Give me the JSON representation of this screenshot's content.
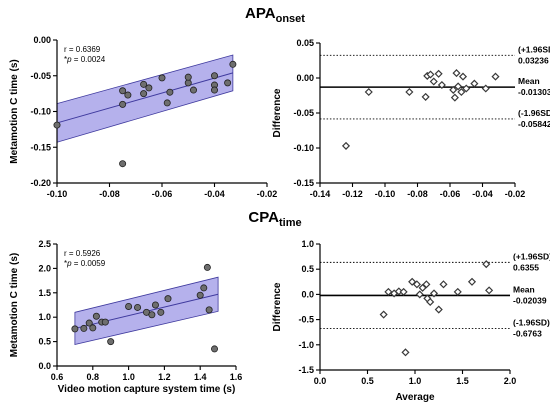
{
  "rows": [
    {
      "title": "APA",
      "title_sub": "onset"
    },
    {
      "title": "CPA",
      "title_sub": "time"
    }
  ],
  "colors": {
    "band": "#9c97e6",
    "band_line": "#3f3a9e",
    "marker": "#3a3a3a",
    "axis": "#000000"
  },
  "chart_data": [
    {
      "type": "scatter",
      "ylabel": "Metamotion C time (s)",
      "xlim": [
        -0.1,
        -0.02
      ],
      "ylim": [
        -0.2,
        0.0
      ],
      "xticks": [
        -0.1,
        -0.08,
        -0.06,
        -0.04,
        -0.02
      ],
      "yticks": [
        -0.2,
        -0.15,
        -0.1,
        -0.05,
        0.0
      ],
      "xtick_labels": [
        "-0.10",
        "-0.08",
        "-0.06",
        "-0.04",
        "-0.02"
      ],
      "ytick_labels": [
        "-0.20",
        "-0.15",
        "-0.10",
        "-0.05",
        "0.00"
      ],
      "annotation": [
        "r = 0.6369",
        "p = 0.0024"
      ],
      "p_prefix": "*",
      "regression": {
        "x": [
          -0.1,
          -0.033
        ],
        "y": [
          -0.116,
          -0.046
        ]
      },
      "ci_band": {
        "x": [
          -0.1,
          -0.033
        ],
        "upper": [
          -0.089,
          -0.021
        ],
        "lower": [
          -0.143,
          -0.071
        ]
      },
      "points": [
        [
          -0.1,
          -0.119
        ],
        [
          -0.075,
          -0.173
        ],
        [
          -0.075,
          -0.071
        ],
        [
          -0.075,
          -0.09
        ],
        [
          -0.073,
          -0.077
        ],
        [
          -0.067,
          -0.075
        ],
        [
          -0.067,
          -0.062
        ],
        [
          -0.065,
          -0.067
        ],
        [
          -0.06,
          -0.053
        ],
        [
          -0.058,
          -0.088
        ],
        [
          -0.057,
          -0.073
        ],
        [
          -0.05,
          -0.06
        ],
        [
          -0.05,
          -0.052
        ],
        [
          -0.048,
          -0.07
        ],
        [
          -0.04,
          -0.05
        ],
        [
          -0.04,
          -0.063
        ],
        [
          -0.04,
          -0.07
        ],
        [
          -0.035,
          -0.06
        ],
        [
          -0.033,
          -0.034
        ]
      ]
    },
    {
      "type": "scatter",
      "ylabel": "Difference",
      "xlim": [
        -0.14,
        -0.02
      ],
      "ylim": [
        -0.15,
        0.05
      ],
      "xticks": [
        -0.14,
        -0.12,
        -0.1,
        -0.08,
        -0.06,
        -0.04,
        -0.02
      ],
      "yticks": [
        -0.15,
        -0.1,
        -0.05,
        0.0,
        0.05
      ],
      "xtick_labels": [
        "-0.14",
        "-0.12",
        "-0.10",
        "-0.08",
        "-0.06",
        "-0.04",
        "-0.02"
      ],
      "ytick_labels": [
        "-0.15",
        "-0.10",
        "-0.05",
        "0.00",
        "0.05"
      ],
      "mean": {
        "label": "Mean",
        "value": -0.01303,
        "value_text": "-0.01303"
      },
      "upper_loa": {
        "label": "(+1.96SD)",
        "value": 0.03236,
        "value_text": "0.03236"
      },
      "lower_loa": {
        "label": "(-1.96SD)",
        "value": -0.05842,
        "value_text": "-0.05842"
      },
      "points": [
        [
          -0.124,
          -0.097
        ],
        [
          -0.11,
          -0.02
        ],
        [
          -0.085,
          -0.02
        ],
        [
          -0.075,
          -0.027
        ],
        [
          -0.074,
          0.003
        ],
        [
          -0.072,
          0.005
        ],
        [
          -0.07,
          -0.005
        ],
        [
          -0.067,
          0.006
        ],
        [
          -0.065,
          -0.01
        ],
        [
          -0.058,
          -0.017
        ],
        [
          -0.057,
          -0.028
        ],
        [
          -0.056,
          0.007
        ],
        [
          -0.055,
          -0.012
        ],
        [
          -0.053,
          -0.02
        ],
        [
          -0.052,
          0.002
        ],
        [
          -0.05,
          -0.015
        ],
        [
          -0.045,
          -0.008
        ],
        [
          -0.038,
          -0.015
        ],
        [
          -0.032,
          0.002
        ]
      ]
    },
    {
      "type": "scatter",
      "xlabel": "Video motion capture system time (s)",
      "ylabel": "Metamotion C time (s)",
      "xlim": [
        0.6,
        1.6
      ],
      "ylim": [
        0.0,
        2.5
      ],
      "xticks": [
        0.6,
        0.8,
        1.0,
        1.2,
        1.4,
        1.6
      ],
      "yticks": [
        0.0,
        0.5,
        1.0,
        1.5,
        2.0,
        2.5
      ],
      "xtick_labels": [
        "0.6",
        "0.8",
        "1.0",
        "1.2",
        "1.4",
        "1.6"
      ],
      "ytick_labels": [
        "0.0",
        "0.5",
        "1.0",
        "1.5",
        "2.0",
        "2.5"
      ],
      "annotation": [
        "r = 0.5926",
        "p = 0.0059"
      ],
      "p_prefix": "*",
      "regression": {
        "x": [
          0.7,
          1.5
        ],
        "y": [
          0.77,
          1.47
        ]
      },
      "ci_band": {
        "x": [
          0.7,
          1.5
        ],
        "upper": [
          1.1,
          1.82
        ],
        "lower": [
          0.44,
          1.12
        ]
      },
      "points": [
        [
          0.7,
          0.76
        ],
        [
          0.75,
          0.77
        ],
        [
          0.78,
          0.88
        ],
        [
          0.8,
          0.78
        ],
        [
          0.82,
          1.02
        ],
        [
          0.85,
          0.9
        ],
        [
          0.87,
          0.9
        ],
        [
          0.9,
          0.5
        ],
        [
          1.0,
          1.22
        ],
        [
          1.05,
          1.2
        ],
        [
          1.1,
          1.1
        ],
        [
          1.13,
          1.05
        ],
        [
          1.15,
          1.25
        ],
        [
          1.18,
          1.1
        ],
        [
          1.22,
          1.38
        ],
        [
          1.4,
          1.45
        ],
        [
          1.42,
          1.6
        ],
        [
          1.44,
          2.02
        ],
        [
          1.45,
          1.15
        ],
        [
          1.48,
          0.35
        ]
      ]
    },
    {
      "type": "scatter",
      "xlabel": "Average",
      "ylabel": "Difference",
      "xlim": [
        0.0,
        2.0
      ],
      "ylim": [
        -1.5,
        1.0
      ],
      "xticks": [
        0.0,
        0.5,
        1.0,
        1.5,
        2.0
      ],
      "yticks": [
        -1.5,
        -1.0,
        -0.5,
        0.0,
        0.5,
        1.0
      ],
      "xtick_labels": [
        "0.0",
        "0.5",
        "1.0",
        "1.5",
        "2.0"
      ],
      "ytick_labels": [
        "-1.5",
        "-1.0",
        "-0.5",
        "0.0",
        "0.5",
        "1.0"
      ],
      "mean": {
        "label": "Mean",
        "value": -0.02039,
        "value_text": "-0.02039"
      },
      "upper_loa": {
        "label": "(+1.96SD)",
        "value": 0.6355,
        "value_text": "0.6355"
      },
      "lower_loa": {
        "label": "(-1.96SD)",
        "value": -0.6763,
        "value_text": "-0.6763"
      },
      "points": [
        [
          0.67,
          -0.4
        ],
        [
          0.72,
          0.05
        ],
        [
          0.78,
          0.02
        ],
        [
          0.83,
          0.06
        ],
        [
          0.88,
          0.05
        ],
        [
          0.9,
          -1.15
        ],
        [
          0.97,
          0.25
        ],
        [
          1.02,
          0.2
        ],
        [
          1.05,
          0.0
        ],
        [
          1.08,
          0.13
        ],
        [
          1.12,
          0.2
        ],
        [
          1.13,
          -0.08
        ],
        [
          1.16,
          -0.15
        ],
        [
          1.2,
          0.02
        ],
        [
          1.25,
          -0.3
        ],
        [
          1.3,
          0.2
        ],
        [
          1.45,
          0.05
        ],
        [
          1.6,
          0.25
        ],
        [
          1.75,
          0.6
        ],
        [
          1.78,
          0.08
        ]
      ]
    }
  ]
}
